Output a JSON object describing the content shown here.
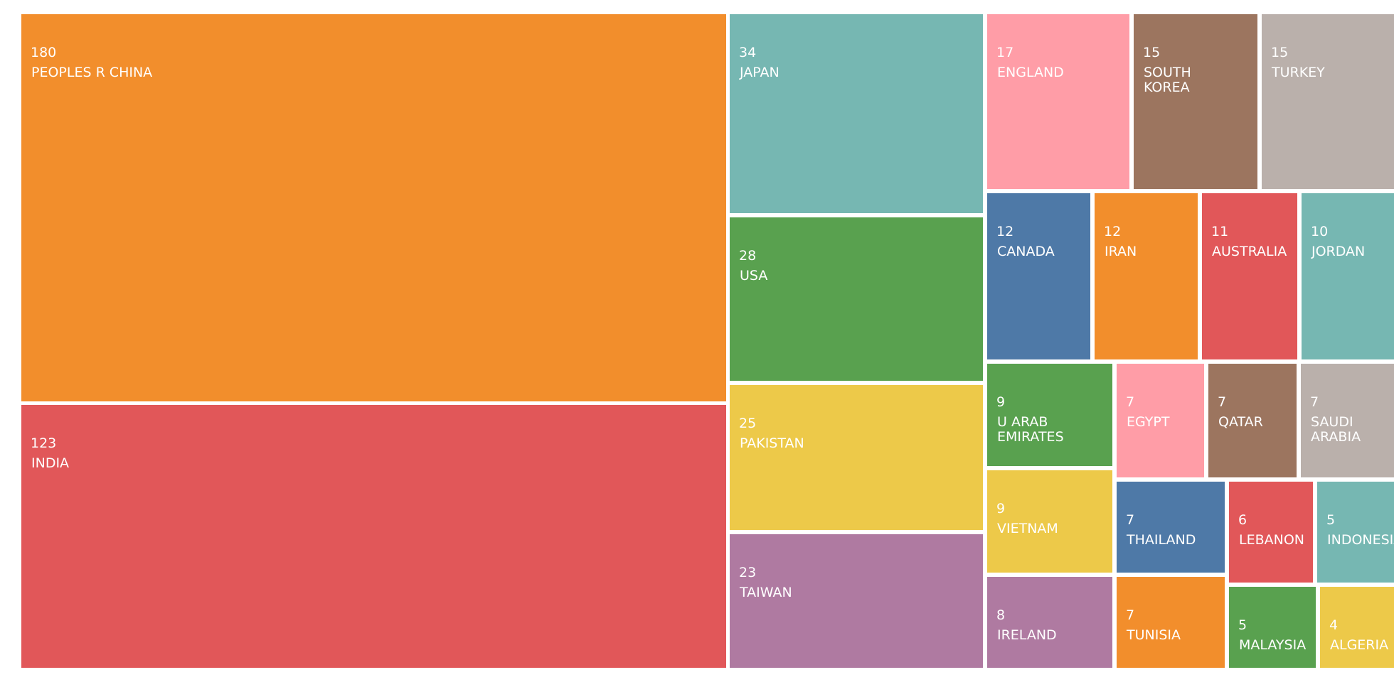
{
  "chart_data": {
    "type": "treemap",
    "title": "",
    "items": [
      {
        "label": "PEOPLES R CHINA",
        "value": 180,
        "color": "#F28E2C"
      },
      {
        "label": "INDIA",
        "value": 123,
        "color": "#E15759"
      },
      {
        "label": "JAPAN",
        "value": 34,
        "color": "#76B7B2"
      },
      {
        "label": "USA",
        "value": 28,
        "color": "#59A14F"
      },
      {
        "label": "PAKISTAN",
        "value": 25,
        "color": "#EDC949"
      },
      {
        "label": "TAIWAN",
        "value": 23,
        "color": "#AF7AA1"
      },
      {
        "label": "ENGLAND",
        "value": 17,
        "color": "#FF9DA7"
      },
      {
        "label": "SOUTH KOREA",
        "value": 15,
        "color": "#9C755F"
      },
      {
        "label": "TURKEY",
        "value": 15,
        "color": "#BAB0AB"
      },
      {
        "label": "CANADA",
        "value": 12,
        "color": "#4E79A7"
      },
      {
        "label": "IRAN",
        "value": 12,
        "color": "#F28E2C"
      },
      {
        "label": "AUSTRALIA",
        "value": 11,
        "color": "#E15759"
      },
      {
        "label": "JORDAN",
        "value": 10,
        "color": "#76B7B2"
      },
      {
        "label": "U ARAB EMIRATES",
        "value": 9,
        "color": "#59A14F"
      },
      {
        "label": "VIETNAM",
        "value": 9,
        "color": "#EDC949"
      },
      {
        "label": "IRELAND",
        "value": 8,
        "color": "#AF7AA1"
      },
      {
        "label": "EGYPT",
        "value": 7,
        "color": "#FF9DA7"
      },
      {
        "label": "QATAR",
        "value": 7,
        "color": "#9C755F"
      },
      {
        "label": "SAUDI ARABIA",
        "value": 7,
        "color": "#BAB0AB"
      },
      {
        "label": "THAILAND",
        "value": 7,
        "color": "#4E79A7"
      },
      {
        "label": "TUNISIA",
        "value": 7,
        "color": "#F28E2C"
      },
      {
        "label": "LEBANON",
        "value": 6,
        "color": "#E15759"
      },
      {
        "label": "MALAYSIA",
        "value": 5,
        "color": "#59A14F"
      },
      {
        "label": "INDONESIA",
        "value": 5,
        "color": "#76B7B2"
      },
      {
        "label": "ALGERIA",
        "value": 4,
        "color": "#EDC949"
      }
    ]
  }
}
